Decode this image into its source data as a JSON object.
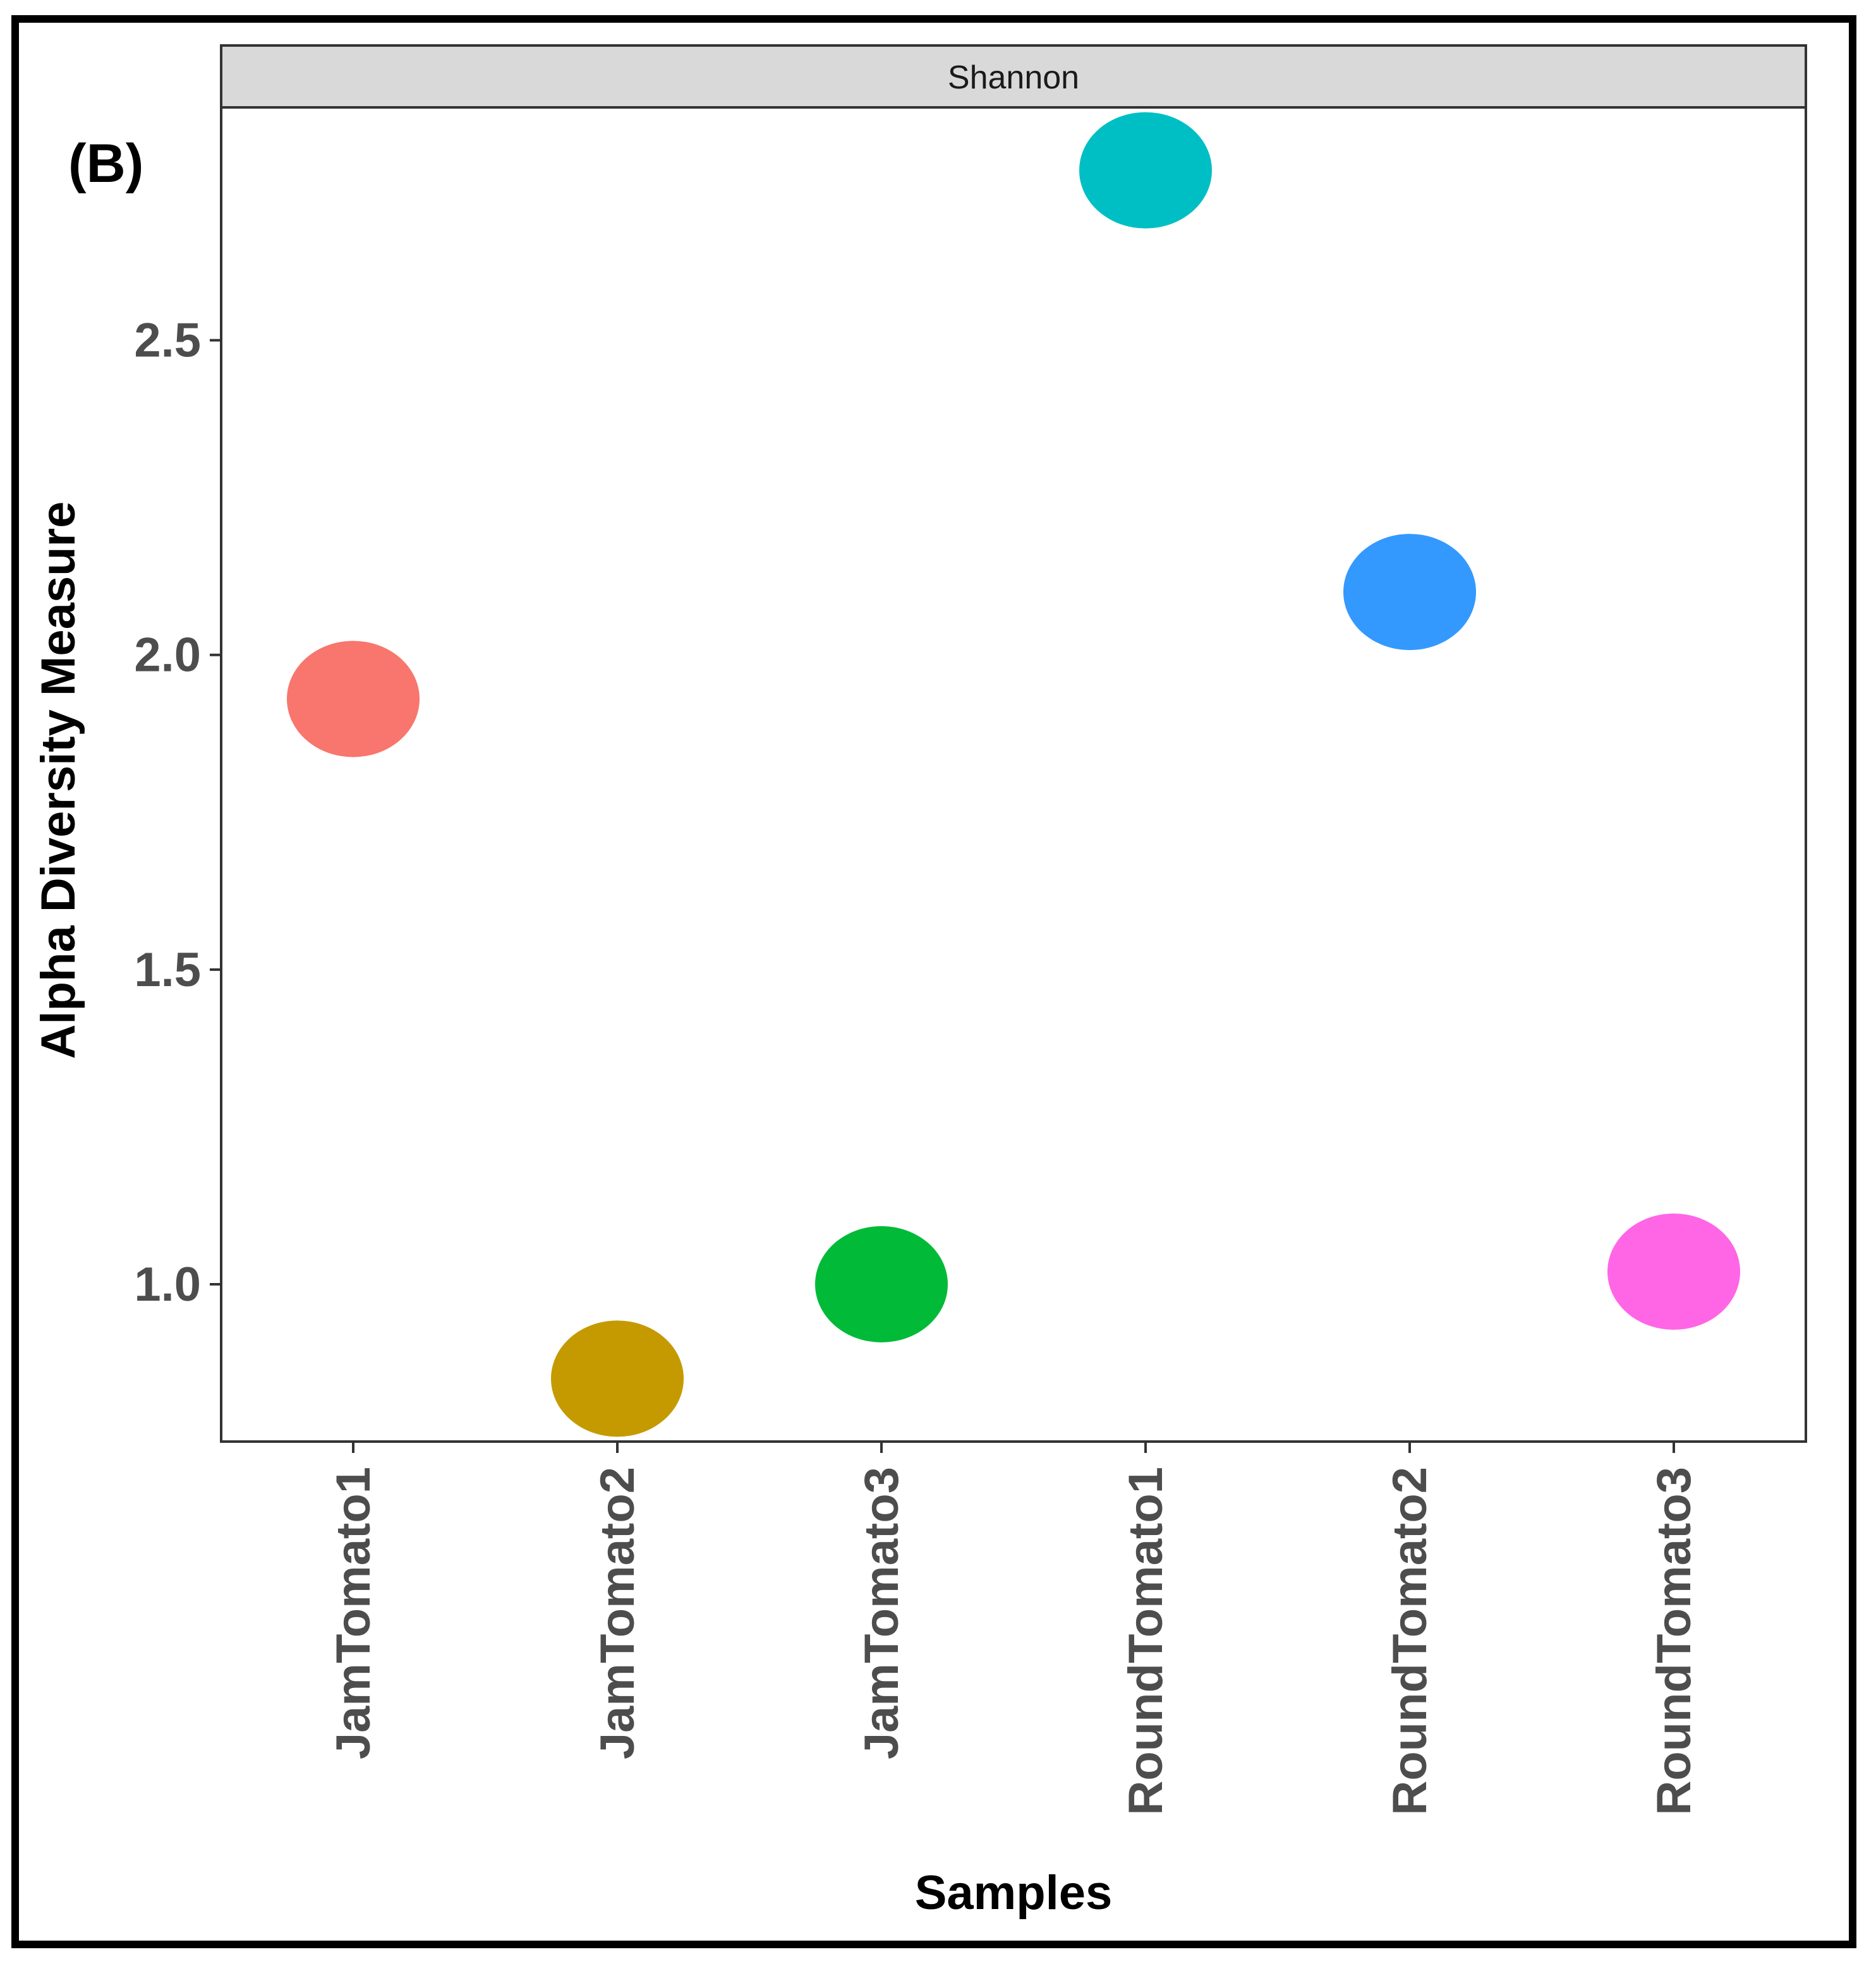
{
  "panel_label": "(B)",
  "chart_data": {
    "type": "scatter",
    "facet_title": "Shannon",
    "xlabel": "Samples",
    "ylabel": "Alpha Diversity Measure",
    "categories": [
      "JamTomato1",
      "JamTomato2",
      "JamTomato3",
      "RoundTomato1",
      "RoundTomato2",
      "RoundTomato3"
    ],
    "values": [
      1.93,
      0.85,
      1.0,
      2.77,
      2.1,
      1.02
    ],
    "colors": [
      "#F8766D",
      "#C49A00",
      "#00BA38",
      "#00BFC4",
      "#3399FF",
      "#FF66E6"
    ],
    "ylim": [
      0.75,
      2.87
    ],
    "yticks": [
      1.0,
      1.5,
      2.0,
      2.5
    ],
    "ytick_labels": [
      "1.0",
      "1.5",
      "2.0",
      "2.5"
    ],
    "grid": false,
    "legend": "none"
  }
}
